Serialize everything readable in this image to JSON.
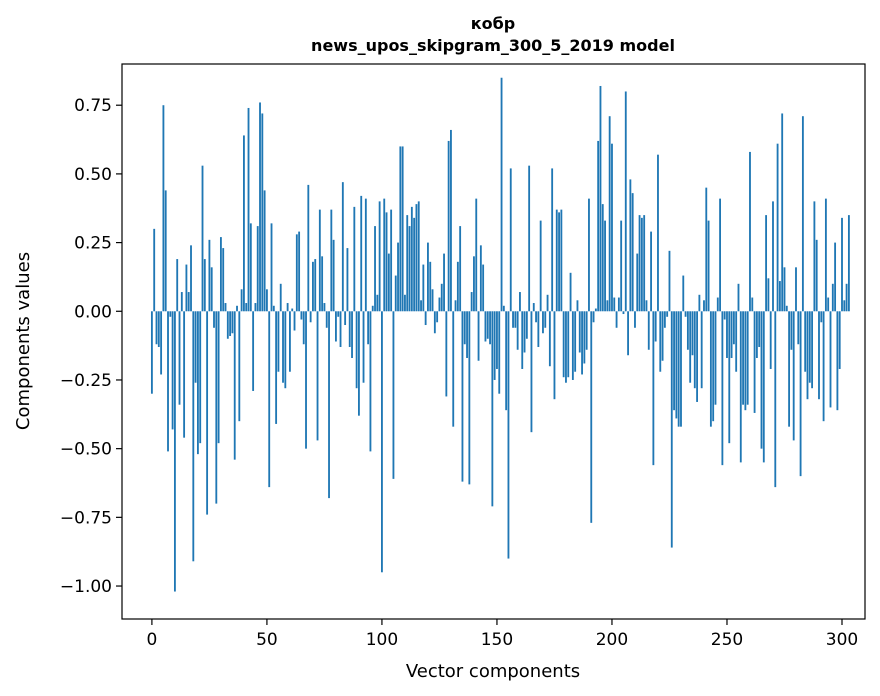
{
  "chart_data": {
    "type": "bar",
    "title_line1": "кобр",
    "title_line2": "news_upos_skipgram_300_5_2019 model",
    "xlabel": "Vector components",
    "ylabel": "Components values",
    "xlim": [
      -13,
      310
    ],
    "ylim": [
      -1.12,
      0.9
    ],
    "xticks": [
      0,
      50,
      100,
      150,
      200,
      250,
      300
    ],
    "xtick_labels": [
      "0",
      "50",
      "100",
      "150",
      "200",
      "250",
      "300"
    ],
    "yticks": [
      -1.0,
      -0.75,
      -0.5,
      -0.25,
      0.0,
      0.25,
      0.5,
      0.75
    ],
    "ytick_labels": [
      "−1.00",
      "−0.75",
      "−0.50",
      "−0.25",
      "0.00",
      "0.25",
      "0.50",
      "0.75"
    ],
    "bar_color": "#1f77b4",
    "values": [
      -0.3,
      0.3,
      -0.12,
      -0.13,
      -0.23,
      0.75,
      0.44,
      -0.51,
      -0.02,
      -0.43,
      -1.02,
      0.19,
      -0.34,
      0.07,
      -0.46,
      0.17,
      0.07,
      0.24,
      -0.91,
      -0.26,
      -0.52,
      -0.48,
      0.53,
      0.19,
      -0.74,
      0.26,
      0.16,
      -0.06,
      -0.7,
      -0.48,
      0.27,
      0.23,
      0.03,
      -0.1,
      -0.09,
      -0.08,
      -0.54,
      0.02,
      -0.4,
      0.08,
      0.64,
      0.03,
      0.74,
      0.32,
      -0.29,
      0.03,
      0.31,
      0.76,
      0.72,
      0.44,
      0.08,
      -0.64,
      0.32,
      0.02,
      -0.41,
      -0.22,
      0.1,
      -0.26,
      -0.28,
      0.03,
      -0.22,
      0.01,
      -0.07,
      0.28,
      0.29,
      -0.03,
      -0.12,
      -0.5,
      0.46,
      -0.04,
      0.18,
      0.19,
      -0.47,
      0.37,
      0.2,
      0.03,
      -0.06,
      -0.68,
      0.37,
      0.26,
      -0.11,
      -0.02,
      -0.13,
      0.47,
      -0.05,
      0.23,
      -0.13,
      -0.17,
      0.38,
      -0.28,
      -0.38,
      0.42,
      -0.26,
      0.41,
      -0.12,
      -0.51,
      0.02,
      0.31,
      0.06,
      0.4,
      -0.95,
      0.41,
      0.36,
      0.21,
      0.37,
      -0.61,
      0.13,
      0.25,
      0.6,
      0.6,
      0.06,
      0.35,
      0.31,
      0.38,
      0.34,
      0.39,
      0.4,
      0.04,
      0.17,
      -0.05,
      0.25,
      0.18,
      0.08,
      -0.08,
      -0.04,
      0.05,
      0.1,
      0.21,
      -0.31,
      0.62,
      0.66,
      -0.42,
      0.04,
      0.18,
      0.31,
      -0.62,
      -0.12,
      -0.17,
      -0.63,
      0.07,
      0.2,
      0.41,
      -0.18,
      0.24,
      0.17,
      -0.11,
      -0.1,
      -0.12,
      -0.71,
      -0.25,
      -0.21,
      -0.3,
      0.85,
      0.02,
      -0.36,
      -0.9,
      0.52,
      -0.06,
      -0.06,
      -0.14,
      0.07,
      -0.21,
      -0.15,
      -0.1,
      0.53,
      -0.44,
      0.03,
      -0.04,
      -0.13,
      0.33,
      -0.08,
      -0.06,
      0.06,
      -0.2,
      0.52,
      -0.32,
      0.37,
      0.36,
      0.37,
      -0.24,
      -0.26,
      -0.24,
      0.14,
      -0.25,
      -0.22,
      0.04,
      -0.15,
      -0.23,
      -0.19,
      -0.14,
      0.41,
      -0.77,
      -0.04,
      0.01,
      0.62,
      0.82,
      0.39,
      0.33,
      0.04,
      0.71,
      0.61,
      0.05,
      -0.06,
      0.05,
      0.33,
      -0.01,
      0.8,
      -0.16,
      0.48,
      0.43,
      -0.06,
      0.21,
      0.35,
      0.34,
      0.35,
      0.04,
      -0.14,
      0.29,
      -0.56,
      -0.11,
      0.57,
      -0.22,
      -0.18,
      -0.06,
      -0.02,
      0.22,
      -0.86,
      -0.36,
      -0.39,
      -0.42,
      -0.42,
      0.13,
      -0.02,
      -0.14,
      -0.26,
      -0.16,
      -0.28,
      -0.33,
      0.06,
      -0.28,
      0.04,
      0.45,
      0.33,
      -0.42,
      -0.4,
      -0.34,
      0.05,
      0.41,
      -0.56,
      -0.03,
      -0.17,
      -0.48,
      -0.17,
      -0.12,
      -0.22,
      0.1,
      -0.55,
      -0.34,
      -0.36,
      -0.34,
      0.58,
      0.05,
      -0.37,
      -0.17,
      -0.13,
      -0.5,
      -0.55,
      0.35,
      0.12,
      -0.21,
      0.4,
      -0.64,
      0.61,
      0.11,
      0.72,
      0.16,
      0.02,
      -0.42,
      -0.14,
      -0.47,
      0.16,
      -0.12,
      -0.6,
      0.71,
      -0.22,
      -0.32,
      -0.26,
      -0.28,
      0.4,
      0.26,
      -0.32,
      -0.04,
      -0.4,
      0.41,
      0.05,
      -0.35,
      0.1,
      0.25,
      -0.36,
      -0.21,
      0.34,
      0.04,
      0.1,
      0.35
    ]
  }
}
